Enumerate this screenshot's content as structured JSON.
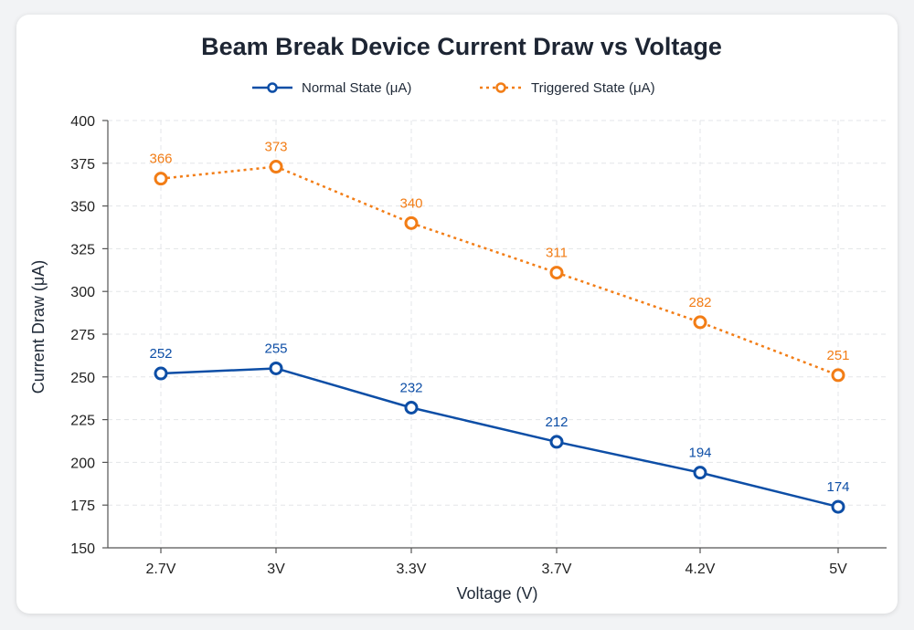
{
  "chart_data": {
    "type": "line",
    "title": "Beam Break Device Current Draw vs Voltage",
    "xlabel": "Voltage (V)",
    "ylabel": "Current Draw (μA)",
    "categories": [
      "2.7V",
      "3V",
      "3.3V",
      "3.7V",
      "4.2V",
      "5V"
    ],
    "ylim": [
      150,
      400
    ],
    "yticks": [
      150,
      175,
      200,
      225,
      250,
      275,
      300,
      325,
      350,
      375,
      400
    ],
    "grid": true,
    "legend_position": "top-center",
    "series": [
      {
        "name": "Normal State (μA)",
        "values": [
          252,
          255,
          232,
          212,
          194,
          174
        ],
        "color": "#0d4ea6",
        "line_style": "solid",
        "marker": "hollow-circle"
      },
      {
        "name": "Triggered State (μA)",
        "values": [
          366,
          373,
          340,
          311,
          282,
          251
        ],
        "color": "#f27d16",
        "line_style": "dotted",
        "marker": "hollow-circle"
      }
    ]
  }
}
